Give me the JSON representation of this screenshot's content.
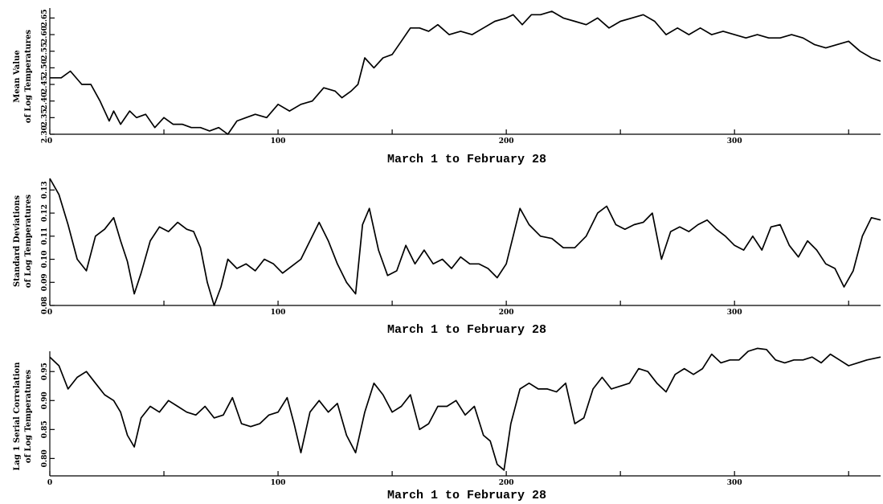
{
  "chart_data": [
    {
      "type": "line",
      "title": "",
      "xlabel": "March 1 to February 28",
      "ylabel": [
        "Mean Value",
        "of Log Temperatures"
      ],
      "xlim": [
        0,
        364
      ],
      "ylim": [
        2.3,
        2.68
      ],
      "x_ticks": [
        0,
        100,
        200,
        300
      ],
      "y_ticks": [
        "2.30",
        "2.35",
        "2.40",
        "2.45",
        "2.50",
        "2.55",
        "2.60",
        "2.65"
      ],
      "y_tick_values": [
        2.3,
        2.35,
        2.4,
        2.45,
        2.5,
        2.55,
        2.6,
        2.65
      ],
      "grid": false,
      "series": [
        {
          "x": [
            0,
            5,
            9,
            14,
            18,
            22,
            26,
            28,
            31,
            35,
            38,
            42,
            46,
            50,
            54,
            58,
            62,
            66,
            70,
            74,
            78,
            82,
            86,
            90,
            95,
            100,
            105,
            110,
            115,
            120,
            125,
            128,
            132,
            135,
            138,
            142,
            146,
            150,
            154,
            158,
            162,
            166,
            170,
            175,
            180,
            185,
            190,
            195,
            200,
            203,
            207,
            211,
            215,
            220,
            225,
            230,
            235,
            240,
            245,
            250,
            255,
            260,
            265,
            270,
            275,
            280,
            285,
            290,
            295,
            300,
            305,
            310,
            315,
            320,
            325,
            330,
            335,
            340,
            345,
            350,
            355,
            360,
            364
          ],
          "values": [
            2.47,
            2.47,
            2.49,
            2.45,
            2.45,
            2.4,
            2.34,
            2.37,
            2.33,
            2.37,
            2.35,
            2.36,
            2.32,
            2.35,
            2.33,
            2.33,
            2.32,
            2.32,
            2.31,
            2.32,
            2.3,
            2.34,
            2.35,
            2.36,
            2.35,
            2.39,
            2.37,
            2.39,
            2.4,
            2.44,
            2.43,
            2.41,
            2.43,
            2.45,
            2.53,
            2.5,
            2.53,
            2.54,
            2.58,
            2.62,
            2.62,
            2.61,
            2.63,
            2.6,
            2.61,
            2.6,
            2.62,
            2.64,
            2.65,
            2.66,
            2.63,
            2.66,
            2.66,
            2.67,
            2.65,
            2.64,
            2.63,
            2.65,
            2.62,
            2.64,
            2.65,
            2.66,
            2.64,
            2.6,
            2.62,
            2.6,
            2.62,
            2.6,
            2.61,
            2.6,
            2.59,
            2.6,
            2.59,
            2.59,
            2.6,
            2.59,
            2.57,
            2.56,
            2.57,
            2.58,
            2.55,
            2.53,
            2.52
          ]
        }
      ]
    },
    {
      "type": "line",
      "title": "",
      "xlabel": "March 1 to February 28",
      "ylabel": [
        "Standard Deviations",
        "of Log Temperatures"
      ],
      "xlim": [
        0,
        364
      ],
      "ylim": [
        0.08,
        0.135
      ],
      "x_ticks": [
        0,
        100,
        200,
        300
      ],
      "y_ticks": [
        "0.08",
        "0.09",
        "0.10",
        "0.11",
        "0.12",
        "0.13"
      ],
      "y_tick_values": [
        0.08,
        0.09,
        0.1,
        0.11,
        0.12,
        0.13
      ],
      "grid": false,
      "series": [
        {
          "x": [
            0,
            4,
            8,
            12,
            16,
            20,
            24,
            28,
            31,
            34,
            37,
            40,
            44,
            48,
            52,
            56,
            60,
            63,
            66,
            69,
            72,
            75,
            78,
            82,
            86,
            90,
            94,
            98,
            102,
            106,
            110,
            114,
            118,
            122,
            126,
            130,
            134,
            137,
            140,
            144,
            148,
            152,
            156,
            160,
            164,
            168,
            172,
            176,
            180,
            184,
            188,
            192,
            196,
            200,
            203,
            206,
            210,
            215,
            220,
            225,
            230,
            235,
            240,
            244,
            248,
            252,
            256,
            260,
            264,
            268,
            272,
            276,
            280,
            284,
            288,
            292,
            296,
            300,
            304,
            308,
            312,
            316,
            320,
            324,
            328,
            332,
            336,
            340,
            344,
            348,
            352,
            356,
            360,
            364
          ],
          "values": [
            0.135,
            0.128,
            0.115,
            0.1,
            0.095,
            0.11,
            0.113,
            0.118,
            0.108,
            0.099,
            0.085,
            0.094,
            0.108,
            0.114,
            0.112,
            0.116,
            0.113,
            0.112,
            0.105,
            0.09,
            0.08,
            0.088,
            0.1,
            0.096,
            0.098,
            0.095,
            0.1,
            0.098,
            0.094,
            0.097,
            0.1,
            0.108,
            0.116,
            0.108,
            0.098,
            0.09,
            0.085,
            0.115,
            0.122,
            0.104,
            0.093,
            0.095,
            0.106,
            0.098,
            0.104,
            0.098,
            0.1,
            0.096,
            0.101,
            0.098,
            0.098,
            0.096,
            0.092,
            0.098,
            0.11,
            0.122,
            0.115,
            0.11,
            0.109,
            0.105,
            0.105,
            0.11,
            0.12,
            0.123,
            0.115,
            0.113,
            0.115,
            0.116,
            0.12,
            0.1,
            0.112,
            0.114,
            0.112,
            0.115,
            0.117,
            0.113,
            0.11,
            0.106,
            0.104,
            0.11,
            0.104,
            0.114,
            0.115,
            0.106,
            0.101,
            0.108,
            0.104,
            0.098,
            0.096,
            0.088,
            0.095,
            0.11,
            0.118,
            0.117
          ]
        }
      ]
    },
    {
      "type": "line",
      "title": "",
      "xlabel": "March 1 to February 28",
      "ylabel": [
        "Lag 1 Serial Correlation",
        "of Log Temperatures"
      ],
      "xlim": [
        0,
        364
      ],
      "ylim": [
        0.77,
        0.985
      ],
      "x_ticks": [
        0,
        100,
        200,
        300
      ],
      "y_ticks": [
        "0.80",
        "0.85",
        "0.90",
        "0.95"
      ],
      "y_tick_values": [
        0.8,
        0.85,
        0.9,
        0.95
      ],
      "grid": false,
      "series": [
        {
          "x": [
            0,
            4,
            8,
            12,
            16,
            20,
            24,
            28,
            31,
            34,
            37,
            40,
            44,
            48,
            52,
            56,
            60,
            64,
            68,
            72,
            76,
            80,
            84,
            88,
            92,
            96,
            100,
            104,
            107,
            110,
            114,
            118,
            122,
            126,
            130,
            134,
            138,
            142,
            146,
            150,
            154,
            158,
            162,
            166,
            170,
            174,
            178,
            182,
            186,
            190,
            193,
            196,
            199,
            202,
            206,
            210,
            214,
            218,
            222,
            226,
            230,
            234,
            238,
            242,
            246,
            250,
            254,
            258,
            262,
            266,
            270,
            274,
            278,
            282,
            286,
            290,
            294,
            298,
            302,
            306,
            310,
            314,
            318,
            322,
            326,
            330,
            334,
            338,
            342,
            346,
            350,
            354,
            358,
            364
          ],
          "values": [
            0.975,
            0.96,
            0.92,
            0.94,
            0.95,
            0.93,
            0.91,
            0.9,
            0.88,
            0.84,
            0.82,
            0.87,
            0.89,
            0.88,
            0.9,
            0.89,
            0.88,
            0.875,
            0.89,
            0.87,
            0.875,
            0.905,
            0.86,
            0.855,
            0.86,
            0.875,
            0.88,
            0.905,
            0.86,
            0.81,
            0.88,
            0.9,
            0.88,
            0.895,
            0.84,
            0.81,
            0.88,
            0.93,
            0.91,
            0.88,
            0.89,
            0.91,
            0.85,
            0.86,
            0.89,
            0.89,
            0.9,
            0.875,
            0.89,
            0.84,
            0.83,
            0.79,
            0.78,
            0.86,
            0.92,
            0.93,
            0.92,
            0.92,
            0.915,
            0.93,
            0.86,
            0.87,
            0.92,
            0.94,
            0.92,
            0.925,
            0.93,
            0.955,
            0.95,
            0.93,
            0.915,
            0.945,
            0.955,
            0.945,
            0.955,
            0.98,
            0.965,
            0.97,
            0.97,
            0.985,
            0.99,
            0.988,
            0.97,
            0.965,
            0.97,
            0.97,
            0.975,
            0.965,
            0.98,
            0.97,
            0.96,
            0.965,
            0.97,
            0.975
          ]
        }
      ]
    }
  ]
}
